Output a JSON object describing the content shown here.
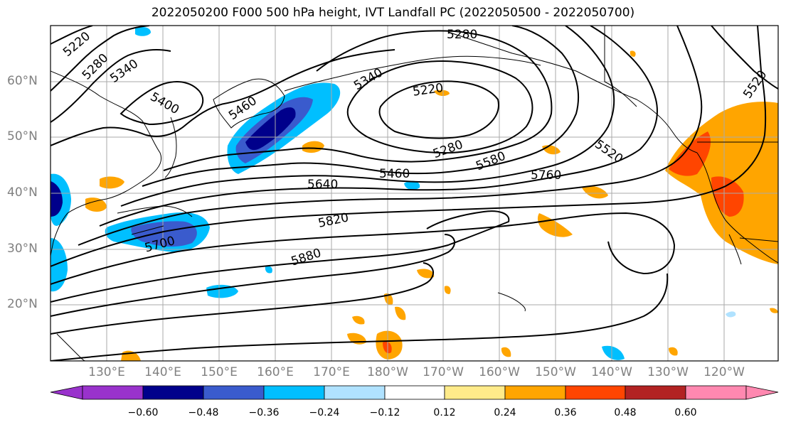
{
  "title": "2022050200 F000 500 hPa height, IVT Landfall PC (2022050500 - 2022050700)",
  "lat_labels": [
    "60°N",
    "50°N",
    "40°N",
    "30°N",
    "20°N"
  ],
  "lon_labels": [
    "130°E",
    "140°E",
    "150°E",
    "160°E",
    "170°E",
    "180°W",
    "170°W",
    "160°W",
    "150°W",
    "140°W",
    "130°W",
    "120°W"
  ],
  "contour_labels": [
    "5220",
    "5280",
    "5340",
    "5400",
    "5460",
    "5340",
    "5280",
    "5220",
    "5280",
    "5580",
    "5520",
    "5460",
    "5640",
    "5760",
    "5700",
    "5820",
    "5880",
    "5520"
  ],
  "colorbar": {
    "colors": [
      "#9932cc",
      "#00008b",
      "#3a5bcd",
      "#00bfff",
      "#b0e2ff",
      "#ffffff",
      "#ffeb8a",
      "#ffa500",
      "#ff4500",
      "#b22222",
      "#ff88b0"
    ],
    "tick_labels": [
      "−0.60",
      "−0.48",
      "−0.36",
      "−0.24",
      "−0.12",
      "0.12",
      "0.24",
      "0.36",
      "0.48",
      "0.60"
    ]
  }
}
